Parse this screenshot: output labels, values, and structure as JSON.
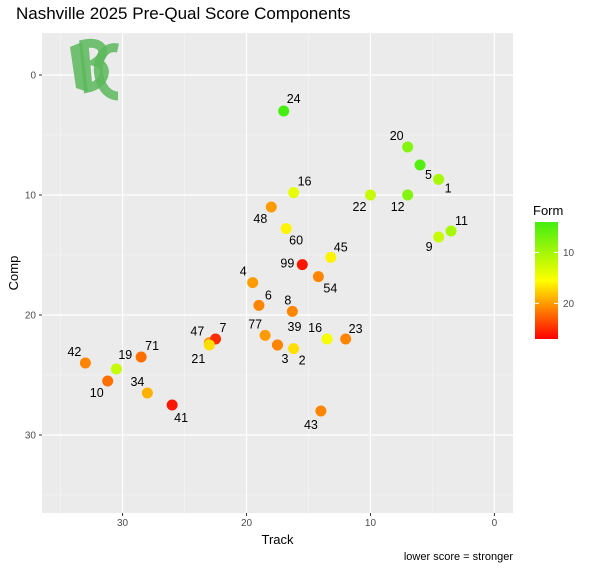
{
  "chart_data": {
    "type": "scatter",
    "title": "Nashville 2025 Pre-Qual Score Components",
    "xlabel": "Track",
    "ylabel": "Comp",
    "caption": "lower score = stronger",
    "x_reversed": true,
    "y_reversed": true,
    "xlim": [
      -1.5,
      36.5
    ],
    "ylim": [
      -3.5,
      36.5
    ],
    "x_ticks": [
      0,
      10,
      20,
      30
    ],
    "y_ticks": [
      0,
      10,
      20,
      30
    ],
    "grid": true,
    "background": "#ebebeb",
    "color_legend": {
      "title": "Form",
      "position": "right",
      "ticks": [
        10,
        20
      ],
      "min": 4,
      "max": 27,
      "low_color": "#44ee11",
      "mid_color": "#ffff00",
      "high_color": "#ff0000"
    },
    "logo": {
      "text": "BC",
      "color": "#5cb85c"
    },
    "points": [
      {
        "label": "24",
        "x": 17.0,
        "y": 3.0,
        "form": 4,
        "dx": 3,
        "dy": -8,
        "anchor": "start"
      },
      {
        "label": "20",
        "x": 7.0,
        "y": 6.0,
        "form": 8,
        "dx": -4,
        "dy": -7,
        "anchor": "end"
      },
      {
        "label": "5",
        "x": 6.0,
        "y": 7.5,
        "form": 5,
        "dx": 5,
        "dy": 14,
        "anchor": "start"
      },
      {
        "label": "1",
        "x": 4.5,
        "y": 8.7,
        "form": 10,
        "dx": 6,
        "dy": 13,
        "anchor": "start"
      },
      {
        "label": "16",
        "x": 16.2,
        "y": 9.8,
        "form": 14,
        "dx": 4,
        "dy": -7,
        "anchor": "start"
      },
      {
        "label": "22",
        "x": 10.0,
        "y": 10.0,
        "form": 12,
        "dx": -4,
        "dy": 16,
        "anchor": "end"
      },
      {
        "label": "12",
        "x": 7.0,
        "y": 10.0,
        "form": 8,
        "dx": -3,
        "dy": 16,
        "anchor": "end"
      },
      {
        "label": "48",
        "x": 18.0,
        "y": 11.0,
        "form": 20,
        "dx": -4,
        "dy": 16,
        "anchor": "end"
      },
      {
        "label": "11",
        "x": 3.5,
        "y": 13.0,
        "form": 10,
        "dx": 4,
        "dy": -6,
        "anchor": "start"
      },
      {
        "label": "9",
        "x": 4.5,
        "y": 13.5,
        "form": 12,
        "dx": -6,
        "dy": 14,
        "anchor": "end"
      },
      {
        "label": "60",
        "x": 16.8,
        "y": 12.8,
        "form": 16,
        "dx": 3,
        "dy": 16,
        "anchor": "start"
      },
      {
        "label": "45",
        "x": 13.2,
        "y": 15.2,
        "form": 16,
        "dx": 3,
        "dy": -6,
        "anchor": "start"
      },
      {
        "label": "99",
        "x": 15.5,
        "y": 15.8,
        "form": 26,
        "dx": -8,
        "dy": 3,
        "anchor": "end"
      },
      {
        "label": "54",
        "x": 14.2,
        "y": 16.8,
        "form": 21,
        "dx": 5,
        "dy": 16,
        "anchor": "start"
      },
      {
        "label": "4",
        "x": 19.5,
        "y": 17.3,
        "form": 20,
        "dx": -6,
        "dy": -7,
        "anchor": "end"
      },
      {
        "label": "6",
        "x": 19.0,
        "y": 19.2,
        "form": 21,
        "dx": 6,
        "dy": -6,
        "anchor": "start"
      },
      {
        "label": "8",
        "x": 16.3,
        "y": 19.7,
        "form": 21,
        "dx": -1,
        "dy": -7,
        "anchor": "end"
      },
      {
        "label": "77",
        "x": 18.5,
        "y": 21.7,
        "form": 20,
        "dx": -3,
        "dy": -7,
        "anchor": "end"
      },
      {
        "label": "39",
        "x": 17.5,
        "y": 22.5,
        "form": 21,
        "dx": 10,
        "dy": -14,
        "anchor": "start"
      },
      {
        "label": "16",
        "x": 13.5,
        "y": 22.0,
        "form": 15,
        "dx": -5,
        "dy": -7,
        "anchor": "end"
      },
      {
        "label": "23",
        "x": 12.0,
        "y": 22.0,
        "form": 21,
        "dx": 3,
        "dy": -6,
        "anchor": "start"
      },
      {
        "label": "3",
        "x": 17.5,
        "y": 22.5,
        "form": 21,
        "dx": 4,
        "dy": 18,
        "anchor": "start"
      },
      {
        "label": "2",
        "x": 16.2,
        "y": 22.8,
        "form": 17,
        "dx": 5,
        "dy": 16,
        "anchor": "start"
      },
      {
        "label": "47",
        "x": 23.0,
        "y": 22.3,
        "form": 20,
        "dx": -5,
        "dy": -7,
        "anchor": "end"
      },
      {
        "label": "7",
        "x": 22.5,
        "y": 22.0,
        "form": 25,
        "dx": 4,
        "dy": -7,
        "anchor": "start"
      },
      {
        "label": "21",
        "x": 23.0,
        "y": 22.5,
        "form": 17,
        "dx": -4,
        "dy": 18,
        "anchor": "end"
      },
      {
        "label": "71",
        "x": 28.5,
        "y": 23.5,
        "form": 22,
        "dx": 4,
        "dy": -7,
        "anchor": "start"
      },
      {
        "label": "42",
        "x": 33.0,
        "y": 24.0,
        "form": 21,
        "dx": -4,
        "dy": -7,
        "anchor": "end"
      },
      {
        "label": "19",
        "x": 30.5,
        "y": 24.5,
        "form": 12,
        "dx": 2,
        "dy": -10,
        "anchor": "start"
      },
      {
        "label": "10",
        "x": 31.2,
        "y": 25.5,
        "form": 22,
        "dx": -4,
        "dy": 16,
        "anchor": "end"
      },
      {
        "label": "34",
        "x": 28.0,
        "y": 26.5,
        "form": 19,
        "dx": -3,
        "dy": -7,
        "anchor": "end"
      },
      {
        "label": "41",
        "x": 26.0,
        "y": 27.5,
        "form": 26,
        "dx": 2,
        "dy": 17,
        "anchor": "start"
      },
      {
        "label": "43",
        "x": 14.0,
        "y": 28.0,
        "form": 21,
        "dx": -3,
        "dy": 18,
        "anchor": "end"
      }
    ]
  }
}
